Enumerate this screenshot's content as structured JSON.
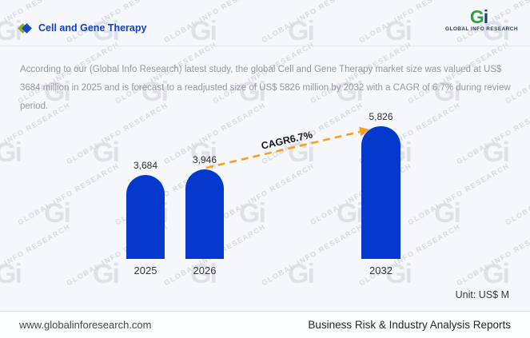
{
  "header": {
    "title": "Cell and Gene Therapy"
  },
  "logo": {
    "monogram_g": "G",
    "monogram_i": "i",
    "caption": "GLOBAL INFO RESEARCH"
  },
  "description": "According to our (Global Info Research) latest study, the global Cell and Gene Therapy market size was valued at US$ 3684 million in 2025 and is forecast to a readjusted size of US$ 5826 million by 2032 with a CAGR of 6.7% during review period.",
  "chart_data": {
    "type": "bar",
    "categories": [
      "2025",
      "2026",
      "2032"
    ],
    "values": [
      3684,
      3946,
      5826
    ],
    "value_labels": [
      "3,684",
      "3,946",
      "5,826"
    ],
    "annotation": "CAGR6.7%",
    "unit_label": "Unit: US$ M",
    "ylim": [
      0,
      5826
    ],
    "grid": false,
    "legend": false,
    "bar_color": "#0539ce",
    "arrow_color": "#f5a11e"
  },
  "watermark": {
    "monogram": "Gi",
    "text": "GLOBAL INFO RESEARCH"
  },
  "colors": {
    "accent_blue": "#1140c4",
    "bar_blue": "#0539ce",
    "arrow_orange": "#f5a11e",
    "logo_green": "#2f9e41",
    "logo_navy": "#1d3f73",
    "diamond_green": "#8fae12",
    "diamond_blue": "#1545cb"
  },
  "footer": {
    "website": "www.globalinforesearch.com",
    "tagline": "Business Risk & Industry Analysis Reports"
  }
}
